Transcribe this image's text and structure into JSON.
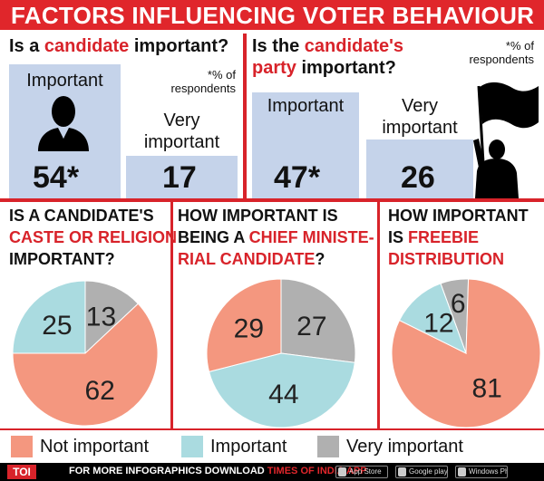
{
  "header": {
    "title": "FACTORS INFLUENCING VOTER BEHAVIOUR"
  },
  "q1": {
    "question_pre": "Is a ",
    "question_hl": "candidate",
    "question_post": " important?",
    "note_line1": "*% of",
    "note_line2": "respondents",
    "important_label": "Important",
    "important_value": "54*",
    "very_label_line1": "Very",
    "very_label_line2": "important",
    "very_value": "17",
    "icon": "person-icon"
  },
  "q2": {
    "question_line1_pre": "Is the ",
    "question_line1_hl": "candidate's",
    "question_line2_hl": "party",
    "question_line2_post": " important?",
    "note_line1": "*% of",
    "note_line2": "respondents",
    "important_label": "Important",
    "important_value": "47*",
    "very_label_line1": "Very",
    "very_label_line2": "important",
    "very_value": "26",
    "icon": "flag-bearer-icon"
  },
  "pie1": {
    "title_line1": "IS A CANDIDATE'S",
    "title_line2_hl": "CASTE OR RELIGION",
    "title_line3": "IMPORTANT?"
  },
  "pie2": {
    "title_line1": "HOW IMPORTANT IS",
    "title_line2_pre": "BEING A ",
    "title_line2_hl": "CHIEF MINISTE-",
    "title_line3_hl": "RIAL CANDIDATE",
    "title_line3_post": "?"
  },
  "pie3": {
    "title_line1": "HOW IMPORTANT",
    "title_line2_pre": "IS ",
    "title_line2_hl": "FREEBIE",
    "title_line3_hl": "DISTRIBUTION"
  },
  "legend": {
    "not_important": "Not important",
    "important": "Important",
    "very_important": "Very important"
  },
  "footer": {
    "logo": "TOI",
    "text_pre": "FOR MORE  INFOGRAPHICS DOWNLOAD ",
    "text_hl": "TIMES OF INDIA APP",
    "store1": "App Store",
    "store2": "Google play",
    "store3": "Windows Phone"
  },
  "colors": {
    "accent_red": "#d8232a",
    "bar_blue": "#c5d3ea",
    "not_important": "#f4977f",
    "important": "#aadbe0",
    "very_important": "#b0b0b0"
  },
  "chart_data": [
    {
      "type": "bar",
      "categories": [
        "Important",
        "Very important"
      ],
      "values": [
        54,
        17
      ],
      "title": "Is a candidate important?",
      "ylim": [
        0,
        54
      ]
    },
    {
      "type": "bar",
      "categories": [
        "Important",
        "Very important"
      ],
      "values": [
        47,
        26
      ],
      "title": "Is the candidate's party important?",
      "ylim": [
        0,
        54
      ]
    },
    {
      "type": "pie",
      "title": "IS A CANDIDATE'S CASTE OR RELIGION IMPORTANT?",
      "categories": [
        "Not important",
        "Important",
        "Very important"
      ],
      "values": [
        62,
        25,
        13
      ]
    },
    {
      "type": "pie",
      "title": "HOW IMPORTANT IS BEING A CHIEF MINISTERIAL CANDIDATE?",
      "categories": [
        "Not important",
        "Important",
        "Very important"
      ],
      "values": [
        29,
        44,
        27
      ]
    },
    {
      "type": "pie",
      "title": "HOW IMPORTANT IS FREEBIE DISTRIBUTION",
      "categories": [
        "Not important",
        "Important",
        "Very important"
      ],
      "values": [
        81,
        12,
        6
      ]
    }
  ]
}
